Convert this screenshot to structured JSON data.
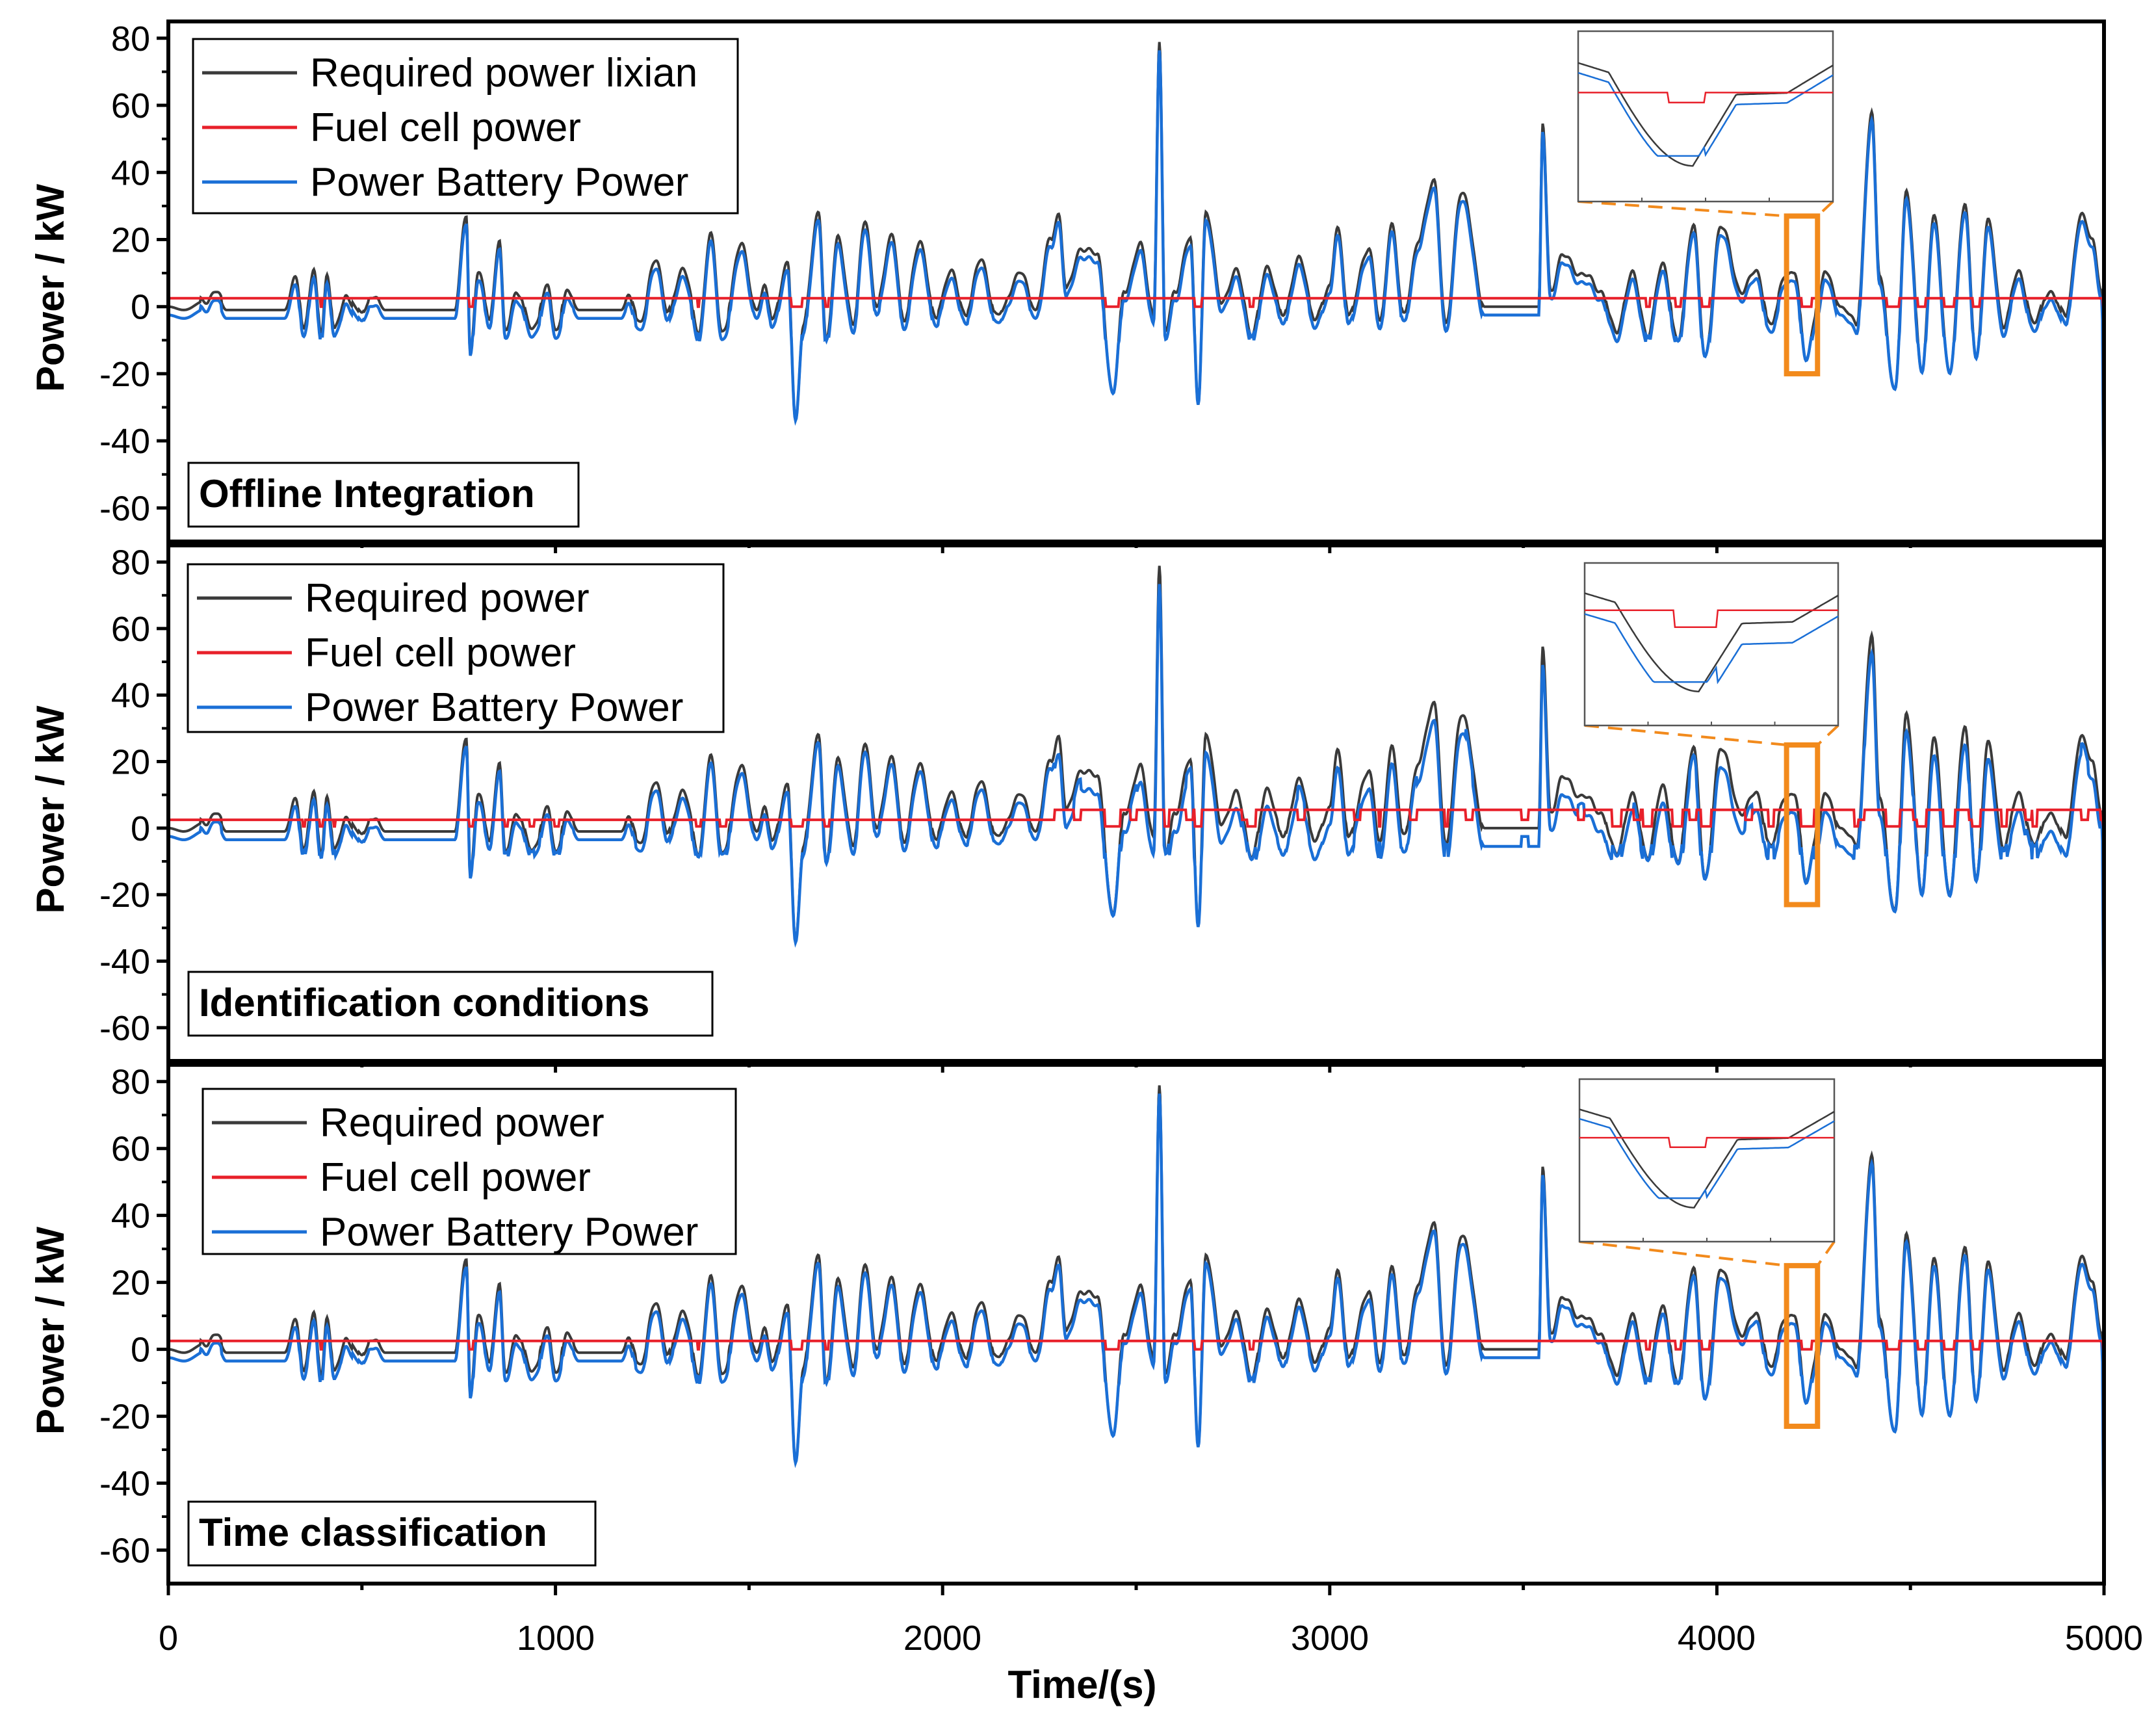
{
  "chart_data": {
    "type": "line",
    "figure_xlabel": "Time/(s)",
    "xlim": [
      0,
      5000
    ],
    "x_ticks": [
      "0",
      "1000",
      "2000",
      "3000",
      "4000",
      "5000"
    ],
    "ylim": [
      -70,
      85
    ],
    "y_ticks": [
      "80",
      "60",
      "40",
      "20",
      "0",
      "-20",
      "-40",
      "-60"
    ],
    "y_tick_values": [
      80,
      60,
      40,
      20,
      0,
      -20,
      -40,
      -60
    ],
    "zoom_box_x_range": [
      4180,
      4260
    ],
    "colors": {
      "required": "#3a3a3a",
      "fuel_cell": "#e8202a",
      "battery": "#1a6fd6",
      "zoom_box": "#f28a1c",
      "frame": "#000000"
    },
    "panels": [
      {
        "title": "Offline Integration",
        "ylabel": "Power / kW",
        "legend": [
          "Required power lixian",
          "Fuel cell power",
          "Power Battery Power"
        ],
        "fuel_cell_mode": "constant",
        "fuel_cell_level_kW": 2.5,
        "zoom_box_y_range": [
          -20,
          27
        ]
      },
      {
        "title": "Identification conditions",
        "ylabel": "Power / kW",
        "legend": [
          "Required power",
          "Fuel cell power",
          "Power Battery Power"
        ],
        "fuel_cell_mode": "switching",
        "fuel_cell_level_kW": 2.5,
        "fuel_cell_high_kW": 5.5,
        "fuel_cell_high_range": [
          2290,
          4990
        ],
        "zoom_box_y_range": [
          -23,
          25
        ]
      },
      {
        "title": "Time classification",
        "ylabel": "Power / kW",
        "legend": [
          "Required power",
          "Fuel cell power",
          "Power Battery Power"
        ],
        "fuel_cell_mode": "constant",
        "fuel_cell_level_kW": 2.5,
        "zoom_box_y_range": [
          -23,
          25
        ]
      }
    ],
    "required_power_keypoints": [
      [
        0,
        0
      ],
      [
        40,
        -1
      ],
      [
        100,
        2
      ],
      [
        120,
        5
      ],
      [
        150,
        -1
      ],
      [
        300,
        -1
      ],
      [
        330,
        8
      ],
      [
        350,
        -6
      ],
      [
        375,
        10
      ],
      [
        395,
        -8
      ],
      [
        410,
        10
      ],
      [
        430,
        -7
      ],
      [
        460,
        3
      ],
      [
        500,
        -2
      ],
      [
        530,
        4
      ],
      [
        560,
        -1
      ],
      [
        740,
        -1
      ],
      [
        770,
        28
      ],
      [
        780,
        -14
      ],
      [
        800,
        10
      ],
      [
        830,
        -3
      ],
      [
        855,
        20
      ],
      [
        870,
        -8
      ],
      [
        900,
        5
      ],
      [
        940,
        -7
      ],
      [
        980,
        6
      ],
      [
        1000,
        -8
      ],
      [
        1030,
        5
      ],
      [
        1060,
        -1
      ],
      [
        1170,
        -1
      ],
      [
        1190,
        3
      ],
      [
        1220,
        -5
      ],
      [
        1260,
        15
      ],
      [
        1290,
        -2
      ],
      [
        1330,
        12
      ],
      [
        1370,
        -8
      ],
      [
        1400,
        22
      ],
      [
        1430,
        -8
      ],
      [
        1480,
        18
      ],
      [
        1520,
        -1
      ],
      [
        1540,
        5
      ],
      [
        1560,
        -3
      ],
      [
        1600,
        12
      ],
      [
        1620,
        -34
      ],
      [
        1640,
        -5
      ],
      [
        1680,
        28
      ],
      [
        1700,
        -10
      ],
      [
        1730,
        20
      ],
      [
        1770,
        -5
      ],
      [
        1800,
        26
      ],
      [
        1830,
        0
      ],
      [
        1870,
        22
      ],
      [
        1900,
        -5
      ],
      [
        1940,
        20
      ],
      [
        1980,
        -3
      ],
      [
        2020,
        10
      ],
      [
        2060,
        -2
      ],
      [
        2100,
        14
      ],
      [
        2140,
        -3
      ],
      [
        2200,
        10
      ],
      [
        2240,
        -1
      ],
      [
        2280,
        20
      ],
      [
        2300,
        28
      ],
      [
        2320,
        5
      ],
      [
        2360,
        18
      ],
      [
        2400,
        15
      ],
      [
        2440,
        -26
      ],
      [
        2470,
        5
      ],
      [
        2510,
        18
      ],
      [
        2545,
        -2
      ],
      [
        2560,
        79
      ],
      [
        2575,
        -8
      ],
      [
        2600,
        5
      ],
      [
        2640,
        20
      ],
      [
        2660,
        -28
      ],
      [
        2680,
        28
      ],
      [
        2720,
        2
      ],
      [
        2760,
        10
      ],
      [
        2800,
        -8
      ],
      [
        2840,
        12
      ],
      [
        2880,
        -3
      ],
      [
        2920,
        15
      ],
      [
        2960,
        -3
      ],
      [
        3000,
        5
      ],
      [
        3020,
        24
      ],
      [
        3050,
        -3
      ],
      [
        3100,
        18
      ],
      [
        3130,
        -5
      ],
      [
        3160,
        25
      ],
      [
        3190,
        -3
      ],
      [
        3230,
        20
      ],
      [
        3270,
        38
      ],
      [
        3300,
        -6
      ],
      [
        3340,
        35
      ],
      [
        3400,
        0
      ],
      [
        3540,
        0
      ],
      [
        3550,
        54
      ],
      [
        3570,
        5
      ],
      [
        3600,
        15
      ],
      [
        3650,
        10
      ],
      [
        3700,
        5
      ],
      [
        3740,
        -8
      ],
      [
        3780,
        10
      ],
      [
        3820,
        -8
      ],
      [
        3860,
        12
      ],
      [
        3900,
        -10
      ],
      [
        3940,
        25
      ],
      [
        3970,
        -16
      ],
      [
        4010,
        25
      ],
      [
        4060,
        5
      ],
      [
        4100,
        10
      ],
      [
        4140,
        -5
      ],
      [
        4180,
        10
      ],
      [
        4200,
        11
      ],
      [
        4230,
        -16
      ],
      [
        4260,
        0
      ],
      [
        4280,
        10
      ],
      [
        4320,
        0
      ],
      [
        4360,
        -5
      ],
      [
        4400,
        57
      ],
      [
        4420,
        10
      ],
      [
        4460,
        -26
      ],
      [
        4490,
        35
      ],
      [
        4530,
        -20
      ],
      [
        4560,
        28
      ],
      [
        4600,
        -20
      ],
      [
        4640,
        30
      ],
      [
        4670,
        -15
      ],
      [
        4700,
        25
      ],
      [
        4740,
        -5
      ],
      [
        4780,
        10
      ],
      [
        4820,
        -5
      ],
      [
        4860,
        5
      ],
      [
        4900,
        -3
      ],
      [
        4940,
        27
      ],
      [
        4970,
        20
      ],
      [
        4995,
        5
      ],
      [
        5000,
        -62
      ]
    ]
  }
}
